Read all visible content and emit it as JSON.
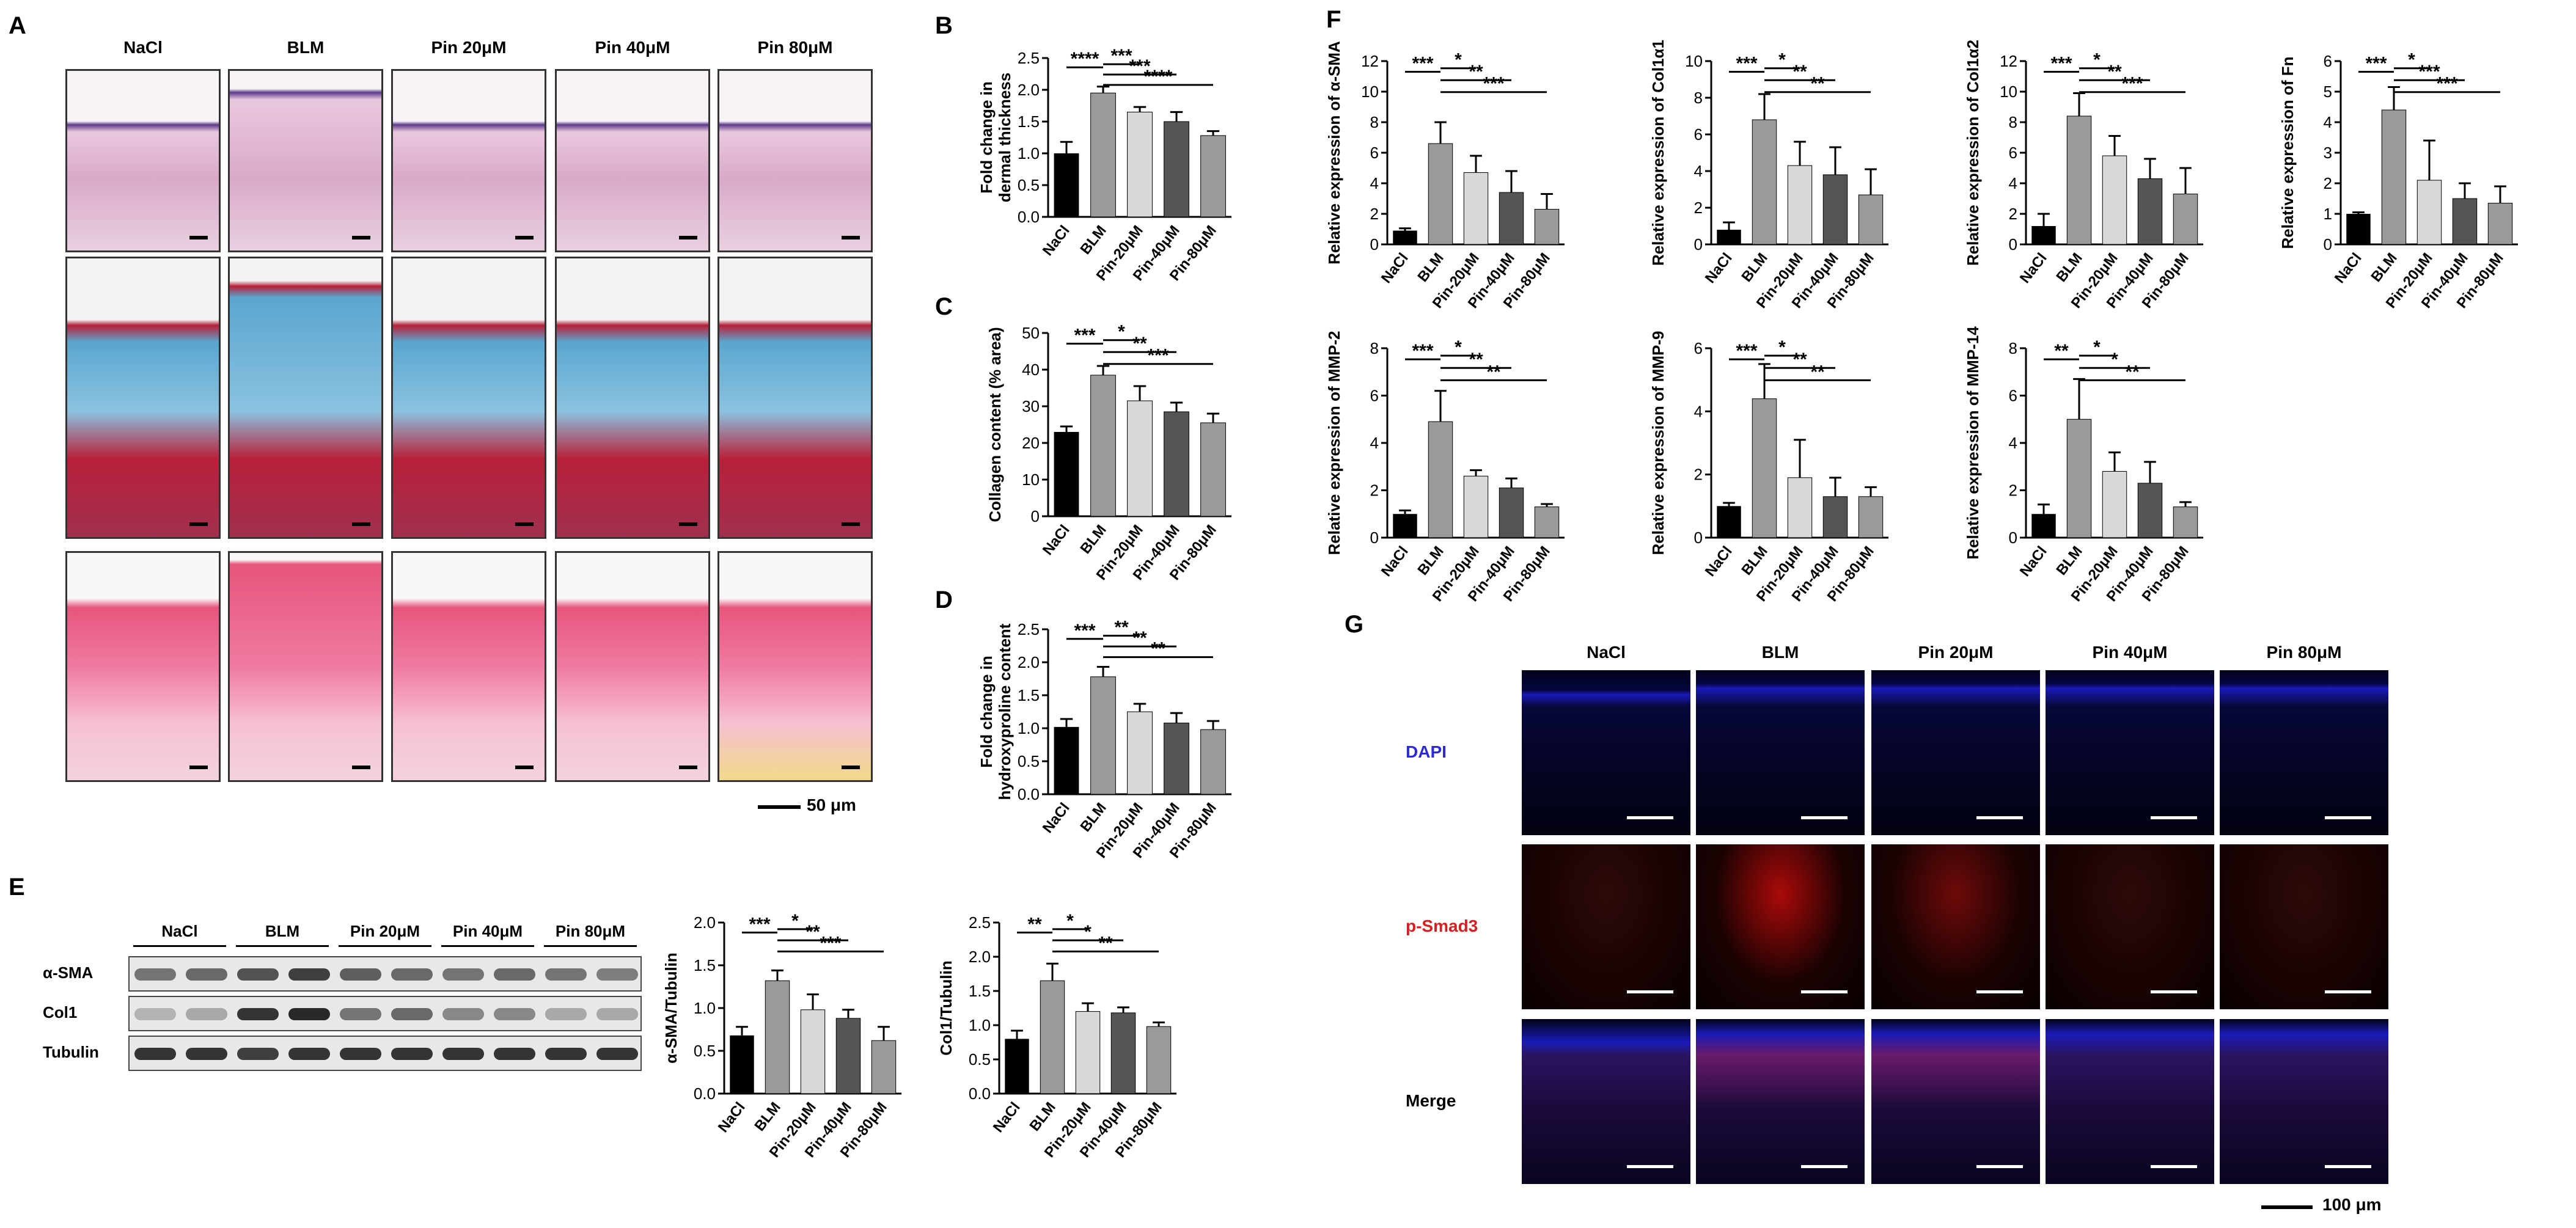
{
  "panels": {
    "A": "A",
    "B": "B",
    "C": "C",
    "D": "D",
    "E": "E",
    "F": "F",
    "G": "G"
  },
  "histology": {
    "groups": [
      "NaCl",
      "BLM",
      "Pin 20μM",
      "Pin 40μM",
      "Pin 80μM"
    ],
    "scale_label": "50 μm",
    "stain_colors": {
      "he_bg": "#e9c8de",
      "he_epi": "#5b3a8a",
      "masson_blue": "#5aa6cf",
      "masson_red": "#b8203a",
      "sirius_pink": "#e6557d",
      "sirius_yellow": "#f2d98a"
    }
  },
  "western": {
    "groups": [
      "NaCl",
      "BLM",
      "Pin 20μM",
      "Pin 40μM",
      "Pin 80μM"
    ],
    "rows": [
      "α-SMA",
      "Col1",
      "Tubulin"
    ]
  },
  "fluorescence": {
    "groups": [
      "NaCl",
      "BLM",
      "Pin 20μM",
      "Pin 40μM",
      "Pin 80μM"
    ],
    "rows": [
      "DAPI",
      "p-Smad3",
      "Merge"
    ],
    "row_colors": [
      "#2a2ad8",
      "#d42020",
      "#000000"
    ],
    "scale_label": "100 μm"
  },
  "chart_data": [
    {
      "id": "B",
      "type": "bar",
      "ylabel": "Fold change in\ndermal thickness",
      "categories": [
        "NaCl",
        "BLM",
        "Pin-20μM",
        "Pin-40μM",
        "Pin-80μM"
      ],
      "values": [
        1.0,
        1.95,
        1.65,
        1.5,
        1.28
      ],
      "errors": [
        0.18,
        0.1,
        0.08,
        0.15,
        0.07
      ],
      "ylim": [
        0,
        2.5
      ],
      "yticks": [
        "0.0",
        "0.5",
        "1.0",
        "1.5",
        "2.0",
        "2.5"
      ],
      "brackets": [
        {
          "from": 0,
          "to": 1,
          "label": "****"
        },
        {
          "from": 1,
          "to": 2,
          "label": "***"
        },
        {
          "from": 1,
          "to": 3,
          "label": "***"
        },
        {
          "from": 1,
          "to": 4,
          "label": "****"
        }
      ]
    },
    {
      "id": "C",
      "type": "bar",
      "ylabel": "Collagen content (% area)",
      "categories": [
        "NaCl",
        "BLM",
        "Pin-20μM",
        "Pin-40μM",
        "Pin-80μM"
      ],
      "values": [
        23,
        38.5,
        31.5,
        28.5,
        25.5
      ],
      "errors": [
        1.5,
        2.5,
        4,
        2.5,
        2.5
      ],
      "ylim": [
        0,
        50
      ],
      "yticks": [
        "0",
        "10",
        "20",
        "30",
        "40",
        "50"
      ],
      "brackets": [
        {
          "from": 0,
          "to": 1,
          "label": "***"
        },
        {
          "from": 1,
          "to": 2,
          "label": "*"
        },
        {
          "from": 1,
          "to": 3,
          "label": "**"
        },
        {
          "from": 1,
          "to": 4,
          "label": "***"
        }
      ]
    },
    {
      "id": "D",
      "type": "bar",
      "ylabel": "Fold change in\nhydroxyproline content",
      "categories": [
        "NaCl",
        "BLM",
        "Pin-20μM",
        "Pin-40μM",
        "Pin-80μM"
      ],
      "values": [
        1.02,
        1.78,
        1.25,
        1.08,
        0.98
      ],
      "errors": [
        0.12,
        0.15,
        0.12,
        0.15,
        0.13
      ],
      "ylim": [
        0,
        2.5
      ],
      "yticks": [
        "0.0",
        "0.5",
        "1.0",
        "1.5",
        "2.0",
        "2.5"
      ],
      "brackets": [
        {
          "from": 0,
          "to": 1,
          "label": "***"
        },
        {
          "from": 1,
          "to": 2,
          "label": "**"
        },
        {
          "from": 1,
          "to": 3,
          "label": "**"
        },
        {
          "from": 1,
          "to": 4,
          "label": "**"
        }
      ]
    },
    {
      "id": "E1",
      "type": "bar",
      "ylabel": "α-SMA/Tubulin",
      "categories": [
        "NaCl",
        "BLM",
        "Pin-20μM",
        "Pin-40μM",
        "Pin-80μM"
      ],
      "values": [
        0.68,
        1.32,
        0.98,
        0.88,
        0.62
      ],
      "errors": [
        0.1,
        0.12,
        0.18,
        0.1,
        0.16
      ],
      "ylim": [
        0,
        2.0
      ],
      "yticks": [
        "0.0",
        "0.5",
        "1.0",
        "1.5",
        "2.0"
      ],
      "brackets": [
        {
          "from": 0,
          "to": 1,
          "label": "***"
        },
        {
          "from": 1,
          "to": 2,
          "label": "*"
        },
        {
          "from": 1,
          "to": 3,
          "label": "**"
        },
        {
          "from": 1,
          "to": 4,
          "label": "***"
        }
      ]
    },
    {
      "id": "E2",
      "type": "bar",
      "ylabel": "Col1/Tubulin",
      "categories": [
        "NaCl",
        "BLM",
        "Pin-20μM",
        "Pin-40μM",
        "Pin-80μM"
      ],
      "values": [
        0.8,
        1.65,
        1.2,
        1.18,
        0.98
      ],
      "errors": [
        0.12,
        0.25,
        0.12,
        0.08,
        0.06
      ],
      "ylim": [
        0,
        2.5
      ],
      "yticks": [
        "0.0",
        "0.5",
        "1.0",
        "1.5",
        "2.0",
        "2.5"
      ],
      "brackets": [
        {
          "from": 0,
          "to": 1,
          "label": "**"
        },
        {
          "from": 1,
          "to": 2,
          "label": "*"
        },
        {
          "from": 1,
          "to": 3,
          "label": "*"
        },
        {
          "from": 1,
          "to": 4,
          "label": "**"
        }
      ]
    },
    {
      "id": "F1",
      "type": "bar",
      "ylabel": "Relative expression of α-SMA",
      "categories": [
        "NaCl",
        "BLM",
        "Pin-20μM",
        "Pin-40μM",
        "Pin-80μM"
      ],
      "values": [
        0.9,
        6.6,
        4.7,
        3.4,
        2.3
      ],
      "errors": [
        0.15,
        1.4,
        1.1,
        1.4,
        1.0
      ],
      "ylim": [
        0,
        12
      ],
      "yticks": [
        "0",
        "2",
        "4",
        "6",
        "8",
        "10",
        "12"
      ],
      "brackets": [
        {
          "from": 0,
          "to": 1,
          "label": "***"
        },
        {
          "from": 1,
          "to": 2,
          "label": "*"
        },
        {
          "from": 1,
          "to": 3,
          "label": "**"
        },
        {
          "from": 1,
          "to": 4,
          "label": "***"
        }
      ]
    },
    {
      "id": "F2",
      "type": "bar",
      "ylabel": "Relative expression of Col1α1",
      "categories": [
        "NaCl",
        "BLM",
        "Pin-20μM",
        "Pin-40μM",
        "Pin-80μM"
      ],
      "values": [
        0.8,
        6.8,
        4.3,
        3.8,
        2.7
      ],
      "errors": [
        0.4,
        1.4,
        1.3,
        1.5,
        1.4
      ],
      "ylim": [
        0,
        10
      ],
      "yticks": [
        "0",
        "2",
        "4",
        "6",
        "8",
        "10"
      ],
      "brackets": [
        {
          "from": 0,
          "to": 1,
          "label": "***"
        },
        {
          "from": 1,
          "to": 2,
          "label": "*"
        },
        {
          "from": 1,
          "to": 3,
          "label": "**"
        },
        {
          "from": 1,
          "to": 4,
          "label": "**"
        }
      ]
    },
    {
      "id": "F3",
      "type": "bar",
      "ylabel": "Relative expression of Col1α2",
      "categories": [
        "NaCl",
        "BLM",
        "Pin-20μM",
        "Pin-40μM",
        "Pin-80μM"
      ],
      "values": [
        1.2,
        8.4,
        5.8,
        4.3,
        3.3
      ],
      "errors": [
        0.8,
        1.5,
        1.3,
        1.3,
        1.7
      ],
      "ylim": [
        0,
        12
      ],
      "yticks": [
        "0",
        "2",
        "4",
        "6",
        "8",
        "10",
        "12"
      ],
      "brackets": [
        {
          "from": 0,
          "to": 1,
          "label": "***"
        },
        {
          "from": 1,
          "to": 2,
          "label": "*"
        },
        {
          "from": 1,
          "to": 3,
          "label": "**"
        },
        {
          "from": 1,
          "to": 4,
          "label": "***"
        }
      ]
    },
    {
      "id": "F4",
      "type": "bar",
      "ylabel": "Relative expression of Fn",
      "categories": [
        "NaCl",
        "BLM",
        "Pin-20μM",
        "Pin-40μM",
        "Pin-80μM"
      ],
      "values": [
        1.0,
        4.4,
        2.1,
        1.5,
        1.35
      ],
      "errors": [
        0.05,
        0.75,
        1.3,
        0.5,
        0.55
      ],
      "ylim": [
        0,
        6
      ],
      "yticks": [
        "0",
        "1",
        "2",
        "3",
        "4",
        "5",
        "6"
      ],
      "brackets": [
        {
          "from": 0,
          "to": 1,
          "label": "***"
        },
        {
          "from": 1,
          "to": 2,
          "label": "*"
        },
        {
          "from": 1,
          "to": 3,
          "label": "***"
        },
        {
          "from": 1,
          "to": 4,
          "label": "***"
        }
      ]
    },
    {
      "id": "F5",
      "type": "bar",
      "ylabel": "Relative expression of MMP-2",
      "categories": [
        "NaCl",
        "BLM",
        "Pin-20μM",
        "Pin-40μM",
        "Pin-80μM"
      ],
      "values": [
        1.0,
        4.9,
        2.6,
        2.1,
        1.3
      ],
      "errors": [
        0.15,
        1.3,
        0.25,
        0.4,
        0.12
      ],
      "ylim": [
        0,
        8
      ],
      "yticks": [
        "0",
        "2",
        "4",
        "6",
        "8"
      ],
      "brackets": [
        {
          "from": 0,
          "to": 1,
          "label": "***"
        },
        {
          "from": 1,
          "to": 2,
          "label": "*"
        },
        {
          "from": 1,
          "to": 3,
          "label": "**"
        },
        {
          "from": 1,
          "to": 4,
          "label": "**"
        }
      ]
    },
    {
      "id": "F6",
      "type": "bar",
      "ylabel": "Relative expression of MMP-9",
      "categories": [
        "NaCl",
        "BLM",
        "Pin-20μM",
        "Pin-40μM",
        "Pin-80μM"
      ],
      "values": [
        1.0,
        4.4,
        1.9,
        1.3,
        1.3
      ],
      "errors": [
        0.1,
        1.1,
        1.2,
        0.6,
        0.3
      ],
      "ylim": [
        0,
        6
      ],
      "yticks": [
        "0",
        "2",
        "4",
        "6"
      ],
      "brackets": [
        {
          "from": 0,
          "to": 1,
          "label": "***"
        },
        {
          "from": 1,
          "to": 2,
          "label": "*"
        },
        {
          "from": 1,
          "to": 3,
          "label": "**"
        },
        {
          "from": 1,
          "to": 4,
          "label": "**"
        }
      ]
    },
    {
      "id": "F7",
      "type": "bar",
      "ylabel": "Relative expression of MMP-14",
      "categories": [
        "NaCl",
        "BLM",
        "Pin-20μM",
        "Pin-40μM",
        "Pin-80μM"
      ],
      "values": [
        1.0,
        5.0,
        2.8,
        2.3,
        1.3
      ],
      "errors": [
        0.4,
        1.7,
        0.8,
        0.9,
        0.2
      ],
      "ylim": [
        0,
        8
      ],
      "yticks": [
        "0",
        "2",
        "4",
        "6",
        "8"
      ],
      "brackets": [
        {
          "from": 0,
          "to": 1,
          "label": "**"
        },
        {
          "from": 1,
          "to": 2,
          "label": "*"
        },
        {
          "from": 1,
          "to": 3,
          "label": "*"
        },
        {
          "from": 1,
          "to": 4,
          "label": "**"
        }
      ]
    }
  ]
}
